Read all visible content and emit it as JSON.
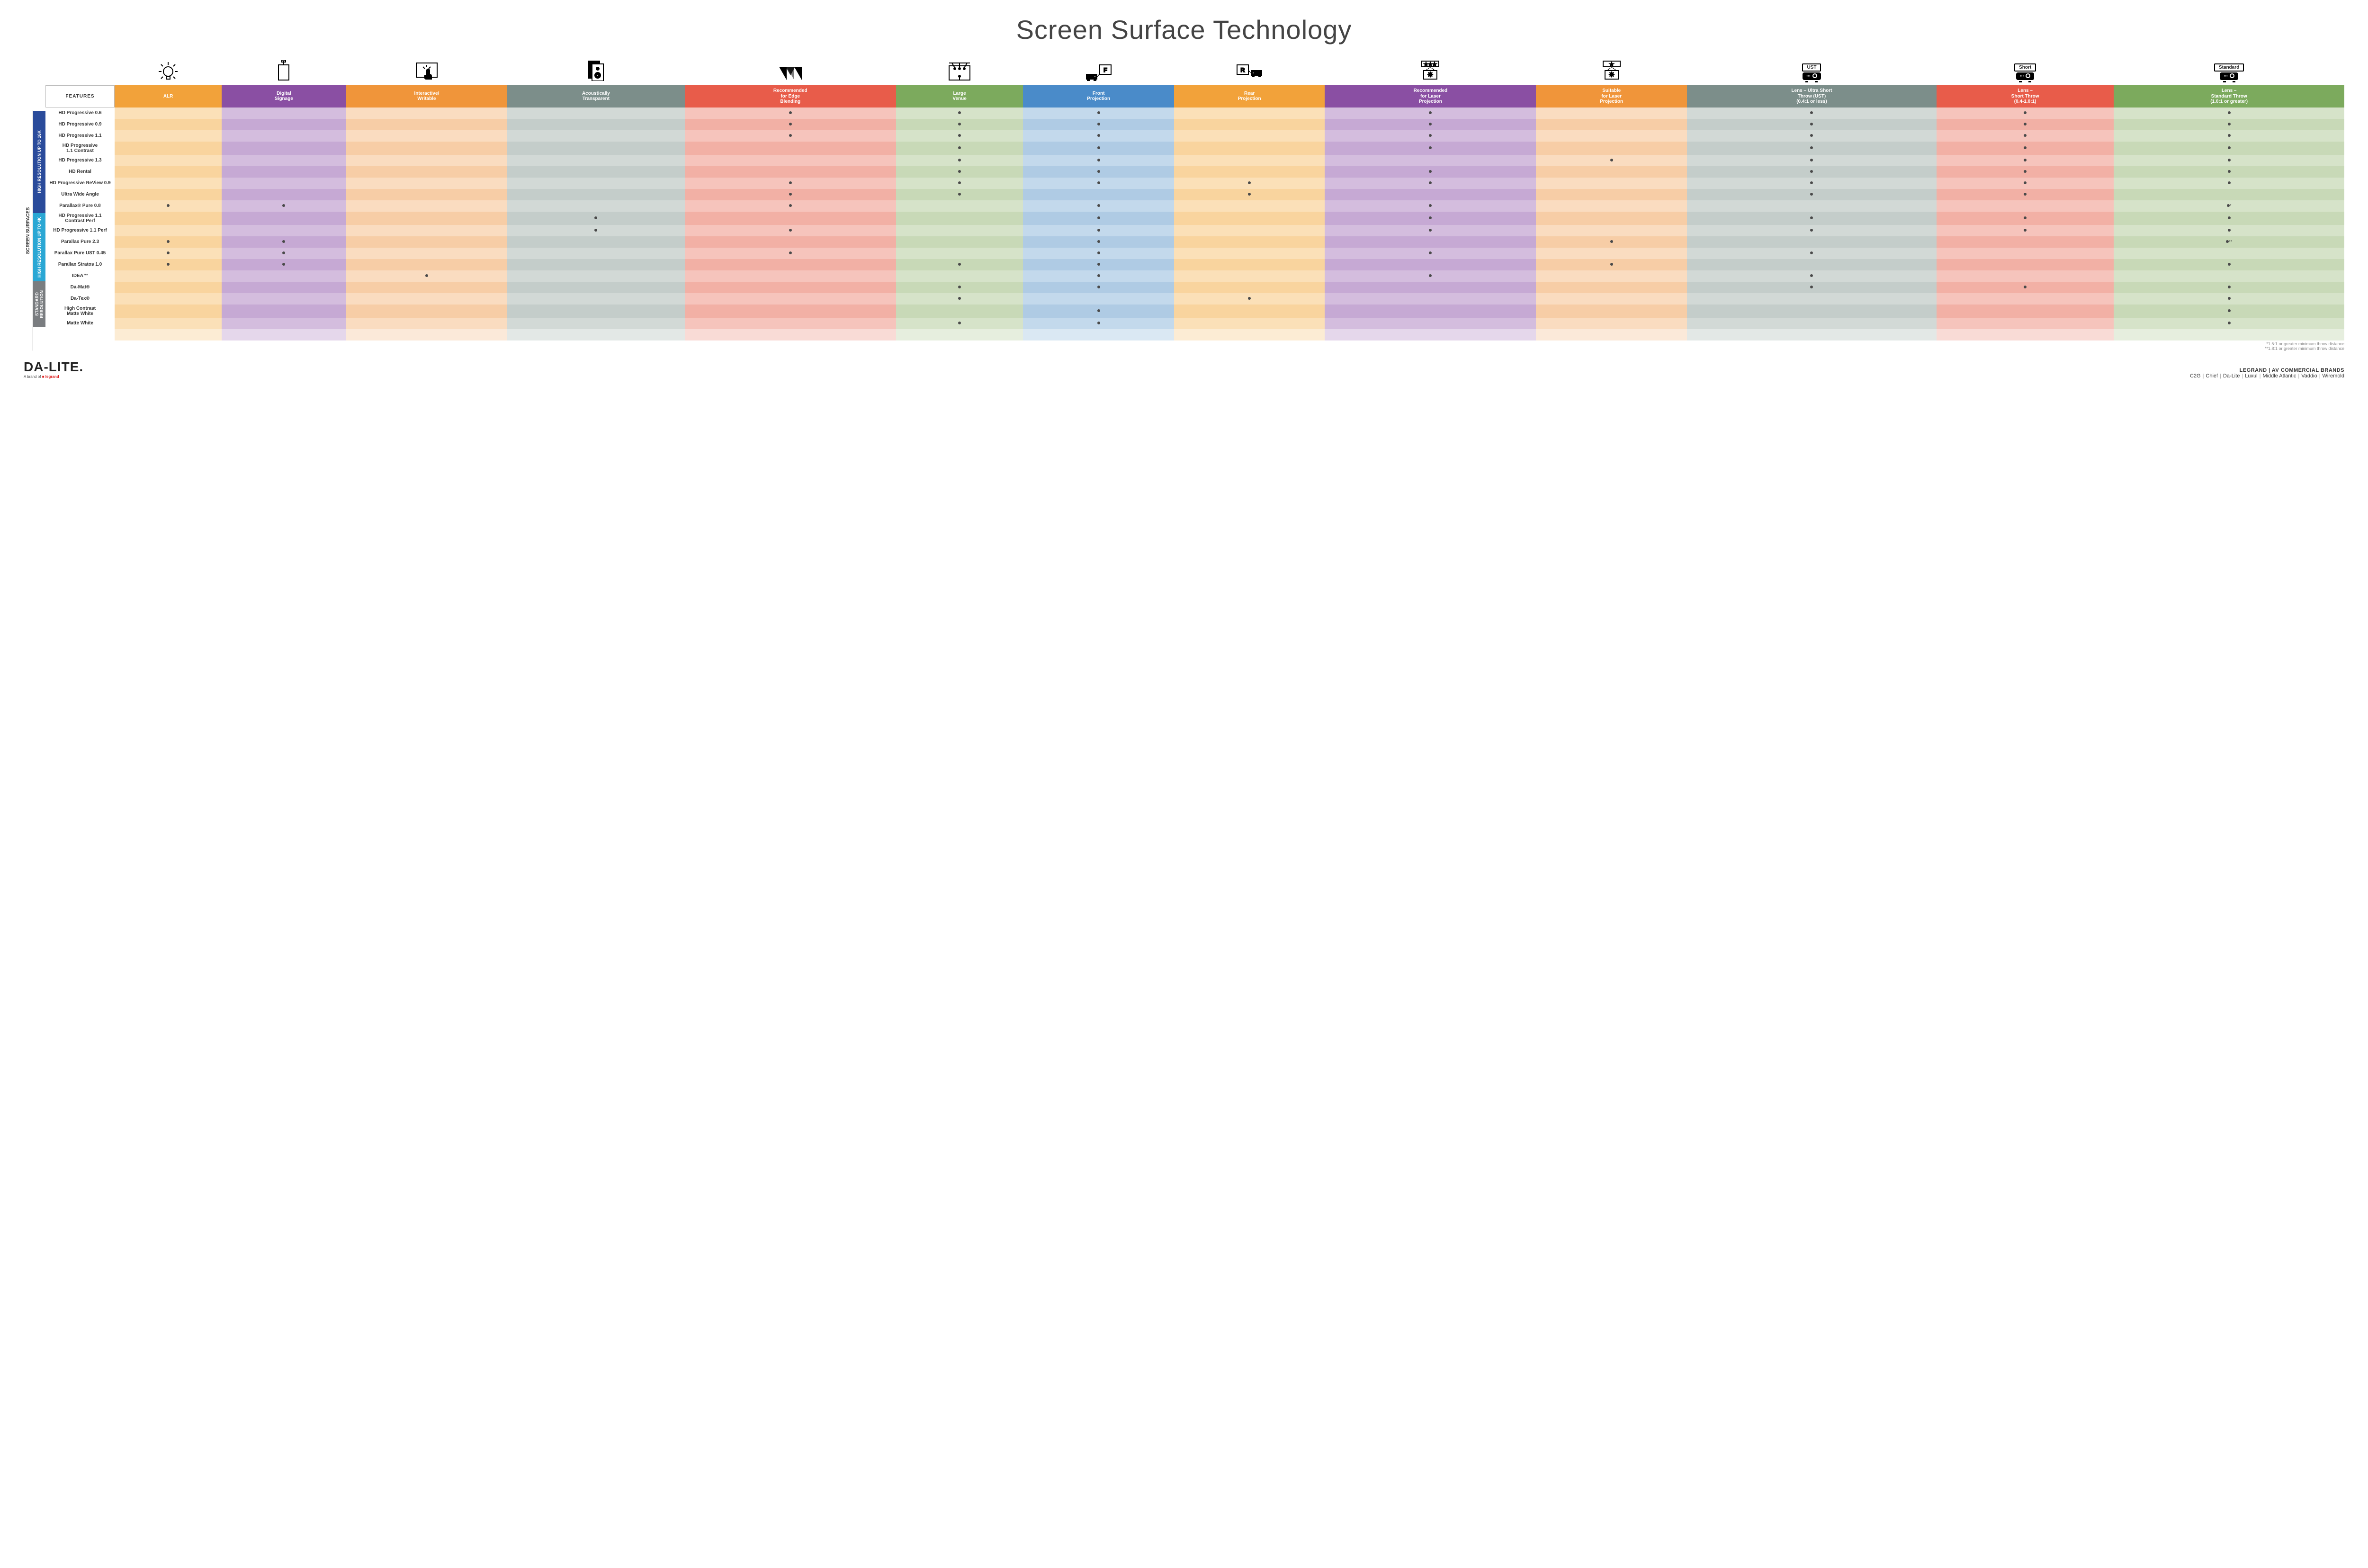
{
  "title": "Screen Surface Technology",
  "features_label": "FEATURES",
  "side_label": "SCREEN SURFACES",
  "columns": [
    {
      "key": "alr",
      "label": "ALR",
      "color": "#f2a23a",
      "tint_a": "#fbe0b8",
      "tint_b": "#f9d49e",
      "icon": "bulb"
    },
    {
      "key": "ds",
      "label": "Digital\nSignage",
      "color": "#8a4fa3",
      "tint_a": "#d4bdde",
      "tint_b": "#c6a9d4",
      "icon": "signage"
    },
    {
      "key": "iw",
      "label": "Interactive/\nWritable",
      "color": "#f0953a",
      "tint_a": "#fadcc0",
      "tint_b": "#f7cda6",
      "icon": "touch"
    },
    {
      "key": "at",
      "label": "Acoustically\nTransparent",
      "color": "#7c8e8a",
      "tint_a": "#d2d9d6",
      "tint_b": "#c4cdca",
      "icon": "speaker"
    },
    {
      "key": "edge",
      "label": "Recommended\nfor Edge\nBlending",
      "color": "#e85c4a",
      "tint_a": "#f6c4bc",
      "tint_b": "#f2b0a5",
      "icon": "blend"
    },
    {
      "key": "lv",
      "label": "Large\nVenue",
      "color": "#7caa5d",
      "tint_a": "#d6e3c9",
      "tint_b": "#c8d9b7",
      "icon": "venue"
    },
    {
      "key": "fp",
      "label": "Front\nProjection",
      "color": "#4a8bc9",
      "tint_a": "#c3d9ec",
      "tint_b": "#afcbe4",
      "icon": "front"
    },
    {
      "key": "rp",
      "label": "Rear\nProjection",
      "color": "#f2a23a",
      "tint_a": "#fbe0b8",
      "tint_b": "#f9d49e",
      "icon": "rear"
    },
    {
      "key": "rlp",
      "label": "Recommended\nfor Laser\nProjection",
      "color": "#8a4fa3",
      "tint_a": "#d4bdde",
      "tint_b": "#c6a9d4",
      "icon": "laser3"
    },
    {
      "key": "slp",
      "label": "Suitable\nfor Laser\nProjection",
      "color": "#f0953a",
      "tint_a": "#fadcc0",
      "tint_b": "#f7cda6",
      "icon": "laser1"
    },
    {
      "key": "ust",
      "label": "Lens – Ultra Short\nThrow (UST)\n(0.4:1 or less)",
      "color": "#7c8e8a",
      "tint_a": "#d2d9d6",
      "tint_b": "#c4cdca",
      "icon": "proj",
      "proj": "UST"
    },
    {
      "key": "short",
      "label": "Lens –\nShort Throw\n(0.4-1.0:1)",
      "color": "#e85c4a",
      "tint_a": "#f6c4bc",
      "tint_b": "#f2b0a5",
      "icon": "proj",
      "proj": "Short"
    },
    {
      "key": "std",
      "label": "Lens –\nStandard Throw\n(1.0:1 or greater)",
      "color": "#7caa5d",
      "tint_a": "#d6e3c9",
      "tint_b": "#c8d9b7",
      "icon": "proj",
      "proj": "Standard"
    }
  ],
  "categories": [
    {
      "label": "HIGH RESOLUTION UP TO 16K",
      "color": "#2a4b9b",
      "rows": [
        {
          "name": "HD Progressive 0.6",
          "cells": {
            "edge": "•",
            "lv": "•",
            "fp": "•",
            "rlp": "•",
            "ust": "•",
            "short": "•",
            "std": "•"
          }
        },
        {
          "name": "HD Progressive 0.9",
          "cells": {
            "edge": "•",
            "lv": "•",
            "fp": "•",
            "rlp": "•",
            "ust": "•",
            "short": "•",
            "std": "•"
          }
        },
        {
          "name": "HD Progressive 1.1",
          "cells": {
            "edge": "•",
            "lv": "•",
            "fp": "•",
            "rlp": "•",
            "ust": "•",
            "short": "•",
            "std": "•"
          }
        },
        {
          "name": "HD Progressive\n1.1 Contrast",
          "cells": {
            "lv": "•",
            "fp": "•",
            "rlp": "•",
            "ust": "•",
            "short": "•",
            "std": "•"
          }
        },
        {
          "name": "HD Progressive 1.3",
          "cells": {
            "lv": "•",
            "fp": "•",
            "slp": "•",
            "ust": "•",
            "short": "•",
            "std": "•"
          }
        },
        {
          "name": "HD Rental",
          "cells": {
            "lv": "•",
            "fp": "•",
            "rlp": "•",
            "ust": "•",
            "short": "•",
            "std": "•"
          }
        },
        {
          "name": "HD Progressive ReView 0.9",
          "cells": {
            "edge": "•",
            "lv": "•",
            "fp": "•",
            "rp": "•",
            "rlp": "•",
            "ust": "•",
            "short": "•",
            "std": "•"
          }
        },
        {
          "name": "Ultra Wide Angle",
          "cells": {
            "edge": "•",
            "lv": "•",
            "rp": "•",
            "ust": "•",
            "short": "•"
          }
        },
        {
          "name": "Parallax® Pure 0.8",
          "cells": {
            "alr": "•",
            "ds": "•",
            "edge": "•",
            "fp": "•",
            "rlp": "•",
            "std": "•*"
          }
        }
      ]
    },
    {
      "label": "HIGH RESOLUTION UP TO 4K",
      "color": "#2aa7d4",
      "rows": [
        {
          "name": "HD Progressive 1.1\nContrast Perf",
          "cells": {
            "at": "•",
            "fp": "•",
            "rlp": "•",
            "ust": "•",
            "short": "•",
            "std": "•"
          }
        },
        {
          "name": "HD Progressive 1.1 Perf",
          "cells": {
            "at": "•",
            "edge": "•",
            "fp": "•",
            "rlp": "•",
            "ust": "•",
            "short": "•",
            "std": "•"
          }
        },
        {
          "name": "Parallax Pure 2.3",
          "cells": {
            "alr": "•",
            "ds": "•",
            "fp": "•",
            "slp": "•",
            "std": "•**"
          }
        },
        {
          "name": "Parallax Pure UST 0.45",
          "cells": {
            "alr": "•",
            "ds": "•",
            "edge": "•",
            "fp": "•",
            "rlp": "•",
            "ust": "•"
          }
        },
        {
          "name": "Parallax Stratos 1.0",
          "cells": {
            "alr": "•",
            "ds": "•",
            "lv": "•",
            "fp": "•",
            "slp": "•",
            "std": "•"
          }
        },
        {
          "name": "IDEA™",
          "cells": {
            "iw": "•",
            "fp": "•",
            "rlp": "•",
            "ust": "•"
          }
        }
      ]
    },
    {
      "label": "STANDARD\nRESOLUTION",
      "color": "#7a7d80",
      "rows": [
        {
          "name": "Da-Mat®",
          "cells": {
            "lv": "•",
            "fp": "•",
            "ust": "•",
            "short": "•",
            "std": "•"
          }
        },
        {
          "name": "Da-Tex®",
          "cells": {
            "lv": "•",
            "rp": "•",
            "std": "•"
          }
        },
        {
          "name": "High Contrast\nMatte White",
          "cells": {
            "fp": "•",
            "std": "•"
          }
        },
        {
          "name": "Matte White",
          "cells": {
            "lv": "•",
            "fp": "•",
            "std": "•"
          }
        }
      ]
    }
  ],
  "footnotes": [
    "*1.5:1 or greater minimum throw distance",
    "**1.8:1 or greater minimum throw distance"
  ],
  "footer": {
    "logo": "DA‑LITE.",
    "logo_sub_pre": "A brand of ",
    "logo_sub_brand": "legrand",
    "brands_line1": "LEGRAND | AV COMMERCIAL BRANDS",
    "brands_list": [
      "C2G",
      "Chief",
      "Da-Lite",
      "Luxul",
      "Middle Atlantic",
      "Vaddio",
      "Wiremold"
    ]
  }
}
